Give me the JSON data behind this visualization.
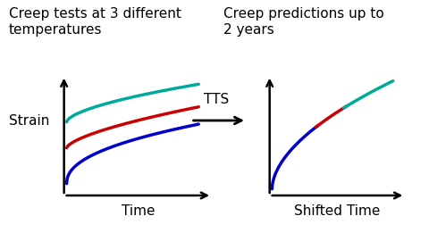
{
  "title_left": "Creep tests at 3 different\ntemperatures",
  "title_right": "Creep predictions up to\n2 years",
  "xlabel_left": "Time",
  "xlabel_right": "Shifted Time",
  "ylabel": "Strain",
  "tts_label": "TTS",
  "color_blue": "#0000cc",
  "color_red": "#cc0000",
  "color_teal": "#00aa99",
  "bg_color": "#ffffff",
  "title_fontsize": 11,
  "label_fontsize": 11,
  "tts_fontsize": 11
}
